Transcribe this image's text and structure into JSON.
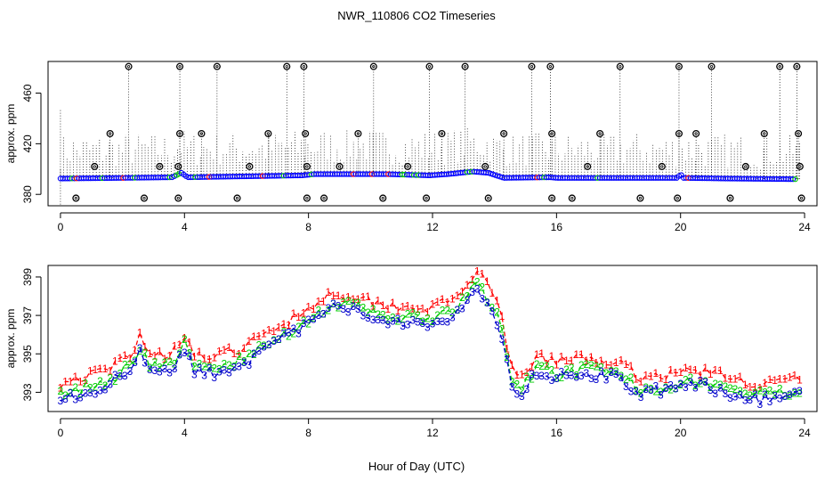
{
  "title": "NWR_110806  CO2 Timeseries",
  "xlabel": "Hour of Day (UTC)",
  "chart_data": [
    {
      "type": "scatter",
      "panel": "top",
      "ylabel": "approx. ppm",
      "xlim": [
        -0.4,
        24.4
      ],
      "ylim": [
        371,
        485
      ],
      "xticks": [
        0,
        4,
        8,
        12,
        16,
        20,
        24
      ],
      "xtick_labels": [
        "0",
        "4",
        "8",
        "12",
        "16",
        "20",
        "24"
      ],
      "yticks": [
        380,
        420,
        460
      ],
      "ytick_labels": [
        "380",
        "420",
        "460"
      ],
      "baseline_knots": [
        [
          0.0,
          392.5
        ],
        [
          2.0,
          393.0
        ],
        [
          3.6,
          393.5
        ],
        [
          3.9,
          397.0
        ],
        [
          4.1,
          393.5
        ],
        [
          7.8,
          395.0
        ],
        [
          8.2,
          396.0
        ],
        [
          10.5,
          396.0
        ],
        [
          11.9,
          395.0
        ],
        [
          12.5,
          396.0
        ],
        [
          13.3,
          398.0
        ],
        [
          13.8,
          397.0
        ],
        [
          14.3,
          393.0
        ],
        [
          15.8,
          393.5
        ],
        [
          16.0,
          393.0
        ],
        [
          19.9,
          393.0
        ],
        [
          20.0,
          396.0
        ],
        [
          20.1,
          393.0
        ],
        [
          21.5,
          392.5
        ],
        [
          23.7,
          392.0
        ]
      ],
      "colors": {
        "baseline": "#0000ff",
        "accent_green": "#00cc00",
        "accent_red": "#ff0000",
        "outlier": "#000000",
        "whisker": "#000000"
      },
      "outliers_high": [
        2.2,
        3.85,
        5.05,
        7.3,
        7.85,
        10.1,
        11.9,
        13.05,
        15.2,
        15.8,
        18.05,
        19.95,
        21.0,
        23.2,
        23.75
      ],
      "outliers_428": [
        1.6,
        3.85,
        4.55,
        6.7,
        7.9,
        9.6,
        12.3,
        14.3,
        15.85,
        17.4,
        19.95,
        20.5,
        22.7,
        23.8
      ],
      "outliers_402": [
        1.1,
        3.2,
        3.8,
        6.1,
        7.95,
        9.0,
        11.2,
        13.7,
        17.0,
        19.4,
        22.1,
        23.85
      ],
      "outliers_low": [
        0.5,
        2.7,
        3.8,
        5.7,
        7.95,
        8.5,
        10.4,
        11.8,
        13.8,
        15.85,
        16.5,
        18.7,
        19.9,
        21.6,
        23.9
      ],
      "outlier_values": {
        "high": 481,
        "mid": 428,
        "low_mid": 402,
        "low": 377
      }
    },
    {
      "type": "line",
      "panel": "bottom",
      "ylabel": "approx. ppm",
      "xlim": [
        -0.4,
        24.4
      ],
      "ylim": [
        392.0,
        399.6
      ],
      "xticks": [
        0,
        4,
        8,
        12,
        16,
        20,
        24
      ],
      "xtick_labels": [
        "0",
        "4",
        "8",
        "12",
        "16",
        "20",
        "24"
      ],
      "yticks": [
        393,
        395,
        397,
        399
      ],
      "ytick_labels": [
        "393",
        "395",
        "397",
        "399"
      ],
      "series": [
        {
          "name": "1",
          "label": "1",
          "color": "#ff0000",
          "offset": 0.6
        },
        {
          "name": "2",
          "label": "2",
          "color": "#00cc00",
          "offset": 0.0
        },
        {
          "name": "3",
          "label": "3",
          "color": "#0000cc",
          "offset": -0.2
        }
      ],
      "base_knots": [
        [
          0.0,
          392.9
        ],
        [
          1.5,
          393.5
        ],
        [
          2.3,
          394.5
        ],
        [
          2.6,
          395.5
        ],
        [
          2.8,
          394.6
        ],
        [
          3.2,
          394.3
        ],
        [
          3.6,
          394.5
        ],
        [
          4.0,
          395.5
        ],
        [
          4.3,
          394.3
        ],
        [
          5.0,
          394.2
        ],
        [
          6.0,
          394.8
        ],
        [
          7.0,
          395.8
        ],
        [
          8.0,
          396.8
        ],
        [
          8.8,
          397.6
        ],
        [
          9.6,
          397.4
        ],
        [
          10.3,
          397.0
        ],
        [
          11.0,
          396.9
        ],
        [
          12.0,
          396.8
        ],
        [
          12.8,
          397.3
        ],
        [
          13.4,
          398.8
        ],
        [
          13.8,
          397.8
        ],
        [
          14.2,
          396.5
        ],
        [
          14.5,
          393.8
        ],
        [
          14.8,
          393.0
        ],
        [
          15.3,
          394.2
        ],
        [
          16.0,
          394.0
        ],
        [
          17.0,
          394.2
        ],
        [
          18.0,
          393.9
        ],
        [
          18.7,
          393.2
        ],
        [
          19.5,
          393.3
        ],
        [
          20.5,
          393.6
        ],
        [
          21.5,
          393.2
        ],
        [
          22.5,
          392.8
        ],
        [
          23.4,
          393.0
        ],
        [
          23.9,
          393.2
        ]
      ]
    }
  ]
}
